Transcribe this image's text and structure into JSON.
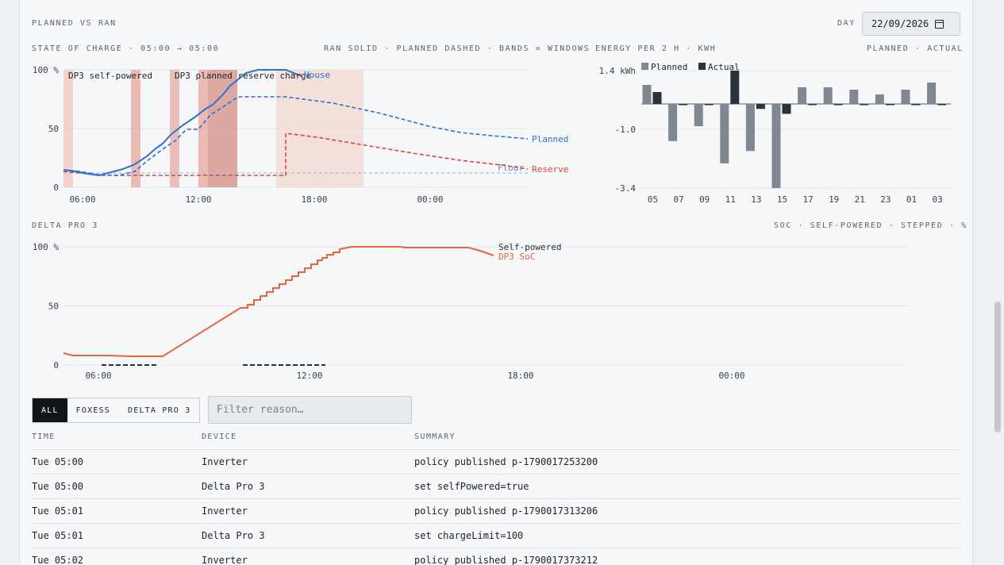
{
  "header": {
    "title": "PLANNED VS RAN",
    "day_label": "DAY",
    "day_value": "22/09/2026"
  },
  "soc_chart": {
    "caption": "STATE OF CHARGE · 05:00 → 05:00",
    "legend_caption": "RAN SOLID · PLANNED DASHED · BANDS = WINDOWS",
    "y_ticks": [
      "100 %",
      "50",
      "0"
    ],
    "x_ticks": [
      "06:00",
      "12:00",
      "18:00",
      "00:00"
    ],
    "band_labels": [
      "DP3 self-powered",
      "DP3 planned reserve charge"
    ],
    "series_labels": {
      "house": "House",
      "planned": "Planned",
      "floor": "Floor",
      "reserve": "Reserve"
    },
    "colors": {
      "house": "#2f6fd0",
      "reserve": "#d9453a",
      "floor": "#9cc0ee",
      "band": "#f2c9bd",
      "band_strong": "#e0887a"
    }
  },
  "energy_chart": {
    "caption": "ENERGY PER 2 H · KWH",
    "legend_caption": "PLANNED · ACTUAL",
    "legend": [
      "Planned",
      "Actual"
    ],
    "y_ticks": [
      "1.4 kWh",
      "-1.0",
      "-3.4"
    ],
    "x_ticks": [
      "05",
      "07",
      "09",
      "11",
      "13",
      "15",
      "17",
      "19",
      "21",
      "23",
      "01",
      "03"
    ],
    "colors": {
      "planned": "#7f8792",
      "actual": "#2b323b"
    }
  },
  "chart_data": {
    "type": "bar",
    "categories": [
      "05",
      "07",
      "09",
      "11",
      "13",
      "15",
      "17",
      "19",
      "21",
      "23",
      "01",
      "03"
    ],
    "series": [
      {
        "name": "Planned",
        "values": [
          0.8,
          -1.5,
          -0.9,
          -2.4,
          -1.9,
          -3.4,
          0.7,
          0.7,
          0.6,
          0.4,
          0.6,
          0.9
        ]
      },
      {
        "name": "Actual",
        "values": [
          0.5,
          0.0,
          0.0,
          1.4,
          -0.2,
          -0.4,
          0.0,
          0.0,
          0.0,
          0.0,
          0.0,
          0.0
        ]
      }
    ],
    "ylim": [
      -3.4,
      1.4
    ]
  },
  "dp3_chart": {
    "caption": "DELTA PRO 3",
    "legend_caption": "SOC · SELF-POWERED · STEPPED · %",
    "y_ticks": [
      "100 %",
      "50",
      "0"
    ],
    "x_ticks": [
      "06:00",
      "12:00",
      "18:00",
      "00:00"
    ],
    "series_labels": {
      "self_powered": "Self-powered",
      "soc": "DP3 SoC"
    },
    "colors": {
      "soc": "#e8643c",
      "self_powered": "#2b323b"
    }
  },
  "filters": {
    "tabs": [
      "ALL",
      "FOXESS",
      "DELTA PRO 3"
    ],
    "active_tab": "ALL",
    "placeholder": "Filter reason…"
  },
  "table": {
    "columns": [
      "TIME",
      "DEVICE",
      "SUMMARY"
    ],
    "rows": [
      {
        "time": "Tue 05:00",
        "device": "Inverter",
        "summary": "policy published p-1790017253200"
      },
      {
        "time": "Tue 05:00",
        "device": "Delta Pro 3",
        "summary": "set selfPowered=true"
      },
      {
        "time": "Tue 05:01",
        "device": "Inverter",
        "summary": "policy published p-1790017313206"
      },
      {
        "time": "Tue 05:01",
        "device": "Delta Pro 3",
        "summary": "set chargeLimit=100"
      },
      {
        "time": "Tue 05:02",
        "device": "Inverter",
        "summary": "policy published p-1790017373212"
      }
    ]
  }
}
